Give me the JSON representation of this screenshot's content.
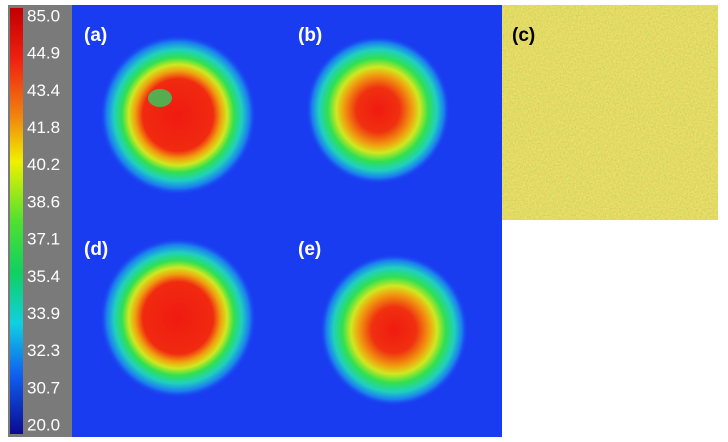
{
  "colorbar": {
    "labels": [
      "85.0",
      "44.9",
      "43.4",
      "41.8",
      "40.2",
      "38.6",
      "37.1",
      "35.4",
      "33.9",
      "32.3",
      "30.7",
      "20.0"
    ]
  },
  "panels": [
    {
      "label": "(a)"
    },
    {
      "label": "(b)"
    },
    {
      "label": "(c)"
    },
    {
      "label": "(d)"
    },
    {
      "label": "(e)"
    }
  ]
}
